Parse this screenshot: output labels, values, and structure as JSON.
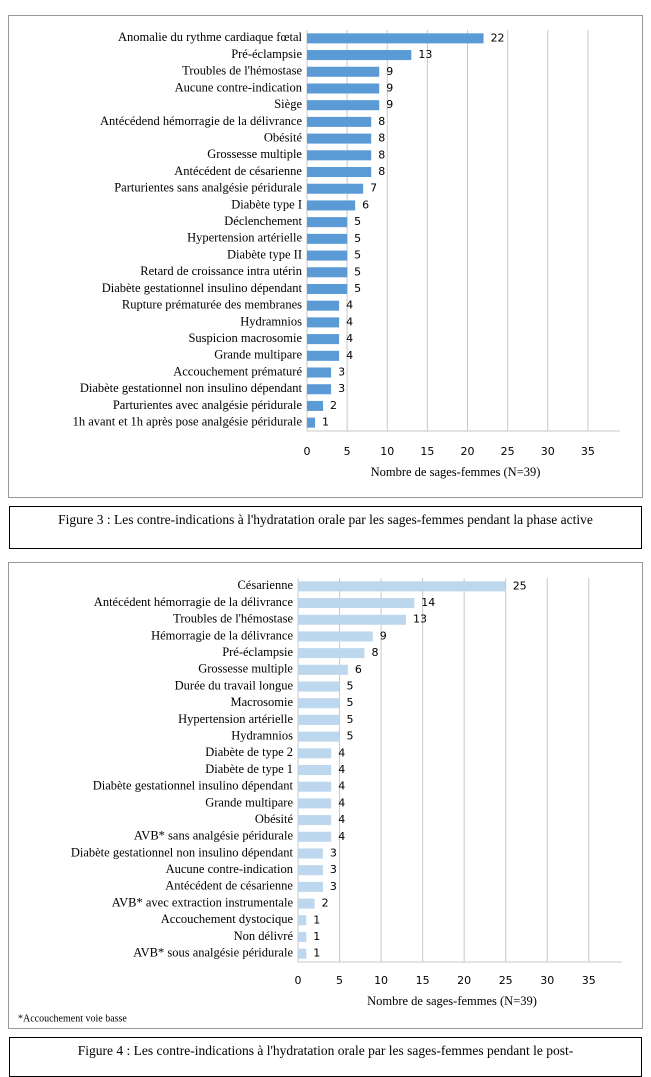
{
  "chart_data": [
    {
      "type": "bar",
      "orientation": "horizontal",
      "color": "#5b9bd5",
      "categories": [
        "Anomalie du rythme cardiaque fœtal",
        "Pré-éclampsie",
        "Troubles de l'hémostase",
        "Aucune contre-indication",
        "Siège",
        "Antécédend hémorragie de la délivrance",
        "Obésité",
        "Grossesse multiple",
        "Antécédent de césarienne",
        "Parturientes sans analgésie péridurale",
        "Diabète type I",
        "Déclenchement",
        "Hypertension artérielle",
        "Diabète type II",
        "Retard de croissance intra utérin",
        "Diabète gestationnel insulino dépendant",
        "Rupture prématurée des membranes",
        "Hydramnios",
        "Suspicion macrosomie",
        "Grande multipare",
        "Accouchement prématuré",
        "Diabète gestationnel non insulino dépendant",
        "Parturientes avec analgésie péridurale",
        "1h avant et 1h après pose analgésie péridurale"
      ],
      "values": [
        22,
        13,
        9,
        9,
        9,
        8,
        8,
        8,
        8,
        7,
        6,
        5,
        5,
        5,
        5,
        5,
        4,
        4,
        4,
        4,
        3,
        3,
        2,
        1
      ],
      "xlim": [
        0,
        39
      ],
      "xticks": [
        0,
        5,
        10,
        15,
        20,
        25,
        30,
        35
      ],
      "grid": true,
      "x_label": "Nombre de sages-femmes (N=39)",
      "caption": "Figure 3 : Les contre-indications à l'hydratation orale par les sages-femmes pendant la phase active"
    },
    {
      "type": "bar",
      "orientation": "horizontal",
      "color": "#bdd7ee",
      "categories": [
        "Césarienne",
        "Antécédent hémorragie de la délivrance",
        "Troubles de l'hémostase",
        "Hémorragie de la délivrance",
        "Pré-éclampsie",
        "Grossesse multiple",
        "Durée du travail longue",
        "Macrosomie",
        "Hypertension artérielle",
        "Hydramnios",
        "Diabète de type 2",
        "Diabète de type 1",
        "Diabète gestationnel insulino dépendant",
        "Grande multipare",
        "Obésité",
        "AVB* sans analgésie péridurale",
        "Diabète gestationnel non insulino dépendant",
        "Aucune contre-indication",
        "Antécédent de césarienne",
        "AVB* avec extraction instrumentale",
        "Accouchement dystocique",
        "Non délivré",
        "AVB* sous analgésie péridurale"
      ],
      "values": [
        25,
        14,
        13,
        9,
        8,
        6,
        5,
        5,
        5,
        5,
        4,
        4,
        4,
        4,
        4,
        4,
        3,
        3,
        3,
        2,
        1,
        1,
        1
      ],
      "xlim": [
        0,
        39
      ],
      "xticks": [
        0,
        5,
        10,
        15,
        20,
        25,
        30,
        35
      ],
      "grid": true,
      "x_label": "Nombre de sages-femmes (N=39)",
      "note": "*Accouchement voie basse",
      "caption": "Figure 4 : Les contre-indications à l'hydratation orale par les sages-femmes pendant le post-"
    }
  ]
}
